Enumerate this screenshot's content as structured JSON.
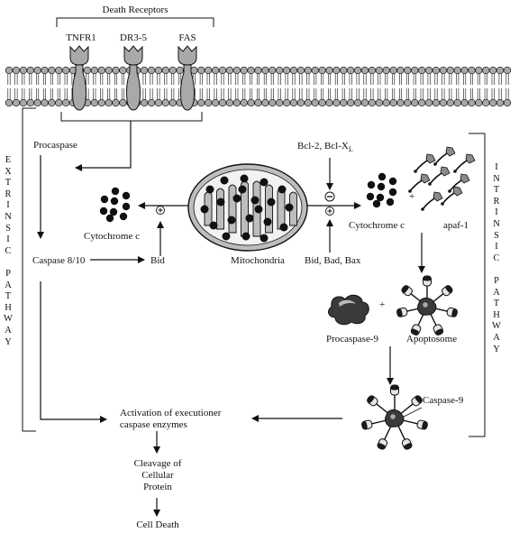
{
  "receptors": {
    "group_label": "Death Receptors",
    "items": [
      {
        "label": "TNFR1"
      },
      {
        "label": "DR3-5"
      },
      {
        "label": "FAS"
      }
    ]
  },
  "extrinsic": {
    "procaspase": "Procaspase",
    "caspase_8_10": "Caspase 8/10",
    "bid": "Bid",
    "cytochrome_c": "Cytochrome c",
    "side_label": "EXTRINSIC PATHWAY"
  },
  "mitochondria": {
    "label": "Mitochondria"
  },
  "intrinsic": {
    "bcl2_main": "Bcl-2, Bcl-X",
    "bcl2_sub": "L",
    "pro_apoptotic": "Bid, Bad, Bax",
    "cytochrome_c": "Cytochrome c",
    "apaf1": "apaf-1",
    "procaspase9": "Procaspase-9",
    "apoptosome": "Apoptosome",
    "caspase9": "Caspase-9",
    "side_label": "INTRINSIC PATHWAY"
  },
  "signs": {
    "plus": "+",
    "minus": "−"
  },
  "execution": {
    "activation_line1": "Activation of executioner",
    "activation_line2": "caspase enzymes",
    "cleavage_line1": "Cleavage of",
    "cleavage_line2": "Cellular",
    "cleavage_line3": "Protein",
    "cell_death": "Cell Death"
  },
  "colors": {
    "ink": "#111111",
    "membrane_bead": "#a8a8a8",
    "mito_fill": "#bdbdbd"
  }
}
